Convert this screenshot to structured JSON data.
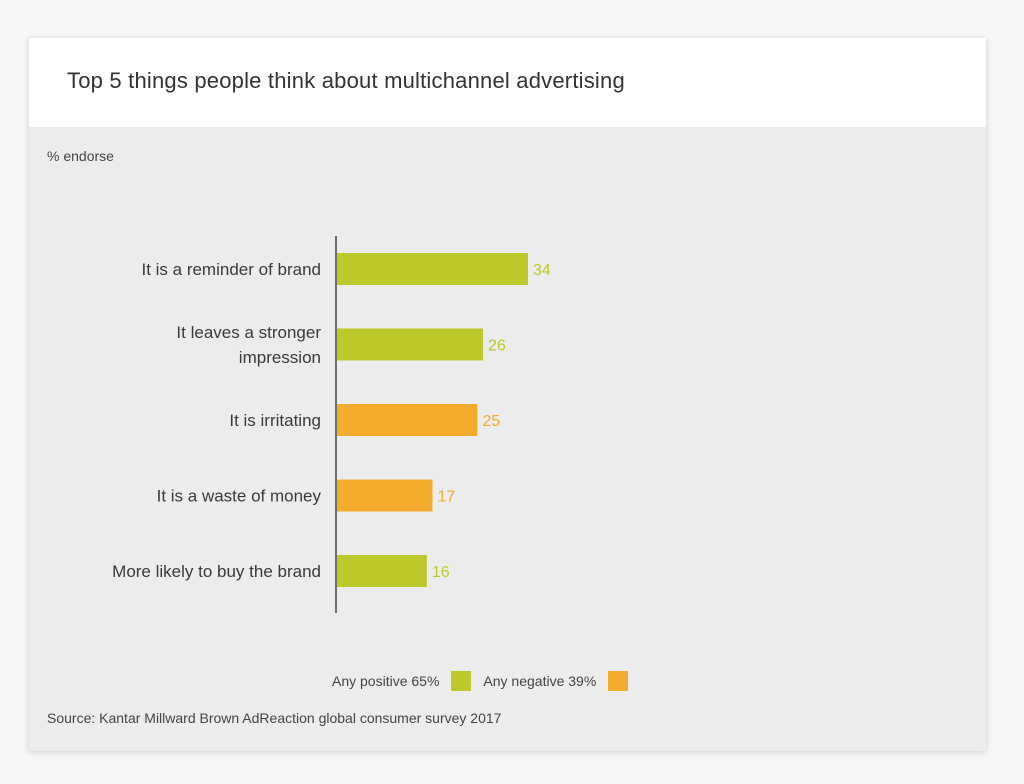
{
  "header": {
    "title": "Top 5 things people think about multichannel advertising"
  },
  "subtitle": "% endorse",
  "colors": {
    "positive": "#bdc92a",
    "negative": "#f4ac2e",
    "axis": "#444444",
    "label_text": "#3a3a3a"
  },
  "chart_data": {
    "type": "bar",
    "orientation": "horizontal",
    "categories": [
      [
        "It is a reminder of brand"
      ],
      [
        "It leaves a stronger",
        "impression"
      ],
      [
        "It is irritating"
      ],
      [
        "It is a waste of money"
      ],
      [
        "More likely to buy the brand"
      ]
    ],
    "values": [
      34,
      26,
      25,
      17,
      16
    ],
    "sentiment": [
      "positive",
      "positive",
      "negative",
      "negative",
      "positive"
    ],
    "data_labels": true,
    "xlim": [
      0,
      100
    ],
    "grid": false,
    "legend_position": "bottom-center"
  },
  "legend": {
    "positive_label": "Any positive 65%",
    "negative_label": "Any negative 39%"
  },
  "source": "Source: Kantar Millward Brown AdReaction global consumer survey 2017"
}
